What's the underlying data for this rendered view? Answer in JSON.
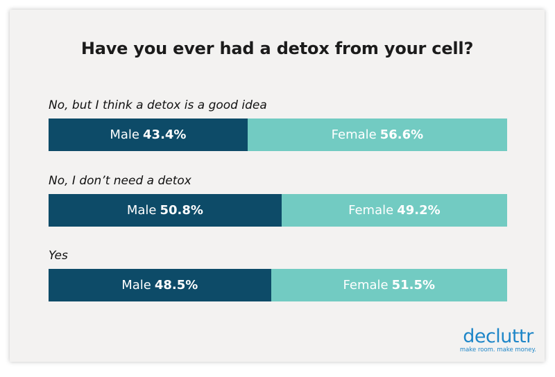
{
  "chart_data": {
    "type": "bar",
    "stacked": true,
    "orientation": "horizontal",
    "title": "Have you ever had a detox from your cell?",
    "categories": [
      "No, but I think a detox is a good idea",
      "No, I don’t need a detox",
      "Yes"
    ],
    "series": [
      {
        "name": "Male",
        "values": [
          43.4,
          50.8,
          48.5
        ],
        "labels": [
          "43.4%",
          "50.8%",
          "48.5%"
        ],
        "color": "#0d4b68"
      },
      {
        "name": "Female",
        "values": [
          56.6,
          49.2,
          51.5
        ],
        "labels": [
          "56.6%",
          "49.2%",
          "51.5%"
        ],
        "color": "#72cbc2"
      }
    ],
    "xlim": [
      0,
      100
    ],
    "grid": false
  },
  "logo": {
    "word": "decluttr",
    "tagline": "make room. make money."
  }
}
